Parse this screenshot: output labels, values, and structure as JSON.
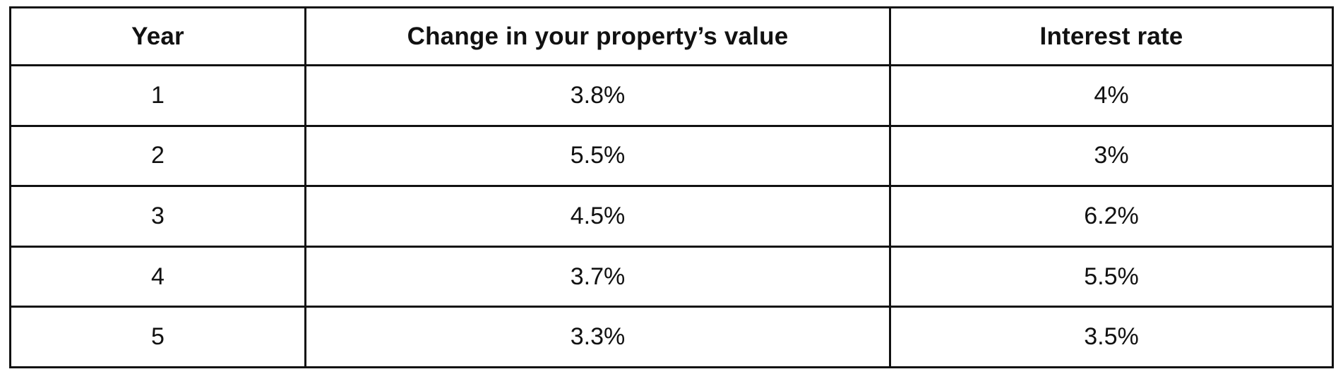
{
  "table": {
    "headers": [
      "Year",
      "Change in your property’s value",
      "Interest rate"
    ],
    "rows": [
      [
        "1",
        "3.8%",
        "4%"
      ],
      [
        "2",
        "5.5%",
        "3%"
      ],
      [
        "3",
        "4.5%",
        "6.2%"
      ],
      [
        "4",
        "3.7%",
        "5.5%"
      ],
      [
        "5",
        "3.3%",
        "3.5%"
      ]
    ]
  }
}
